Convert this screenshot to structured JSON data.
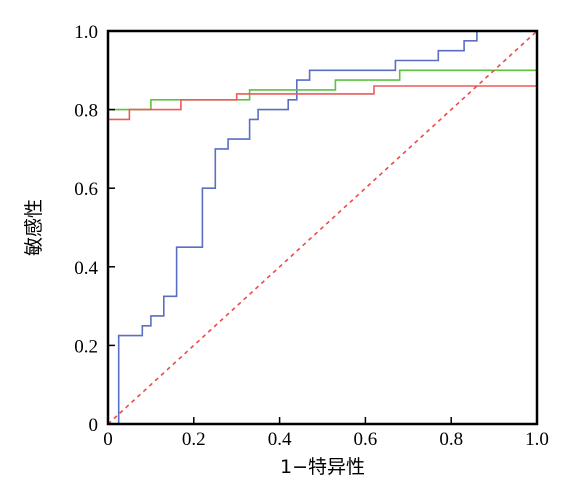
{
  "chart_data": {
    "type": "line",
    "title": "",
    "xlabel": "1−特异性",
    "ylabel": "敏感性",
    "xlim": [
      0,
      1
    ],
    "ylim": [
      0,
      1
    ],
    "grid": false,
    "legend": "none",
    "x_ticks": [
      "0",
      "0.2",
      "0.4",
      "0.6",
      "0.8",
      "1.0"
    ],
    "y_ticks": [
      "0",
      "0.2",
      "0.4",
      "0.6",
      "0.8",
      "1.0"
    ],
    "x_tick_values": [
      0,
      0.2,
      0.4,
      0.6,
      0.8,
      1.0
    ],
    "y_tick_values": [
      0,
      0.2,
      0.4,
      0.6,
      0.8,
      1.0
    ],
    "series": [
      {
        "color": "#5a6fc4",
        "style": "step",
        "points": [
          [
            0.025,
            0
          ],
          [
            0.025,
            0.225
          ],
          [
            0.08,
            0.225
          ],
          [
            0.08,
            0.25
          ],
          [
            0.1,
            0.25
          ],
          [
            0.1,
            0.275
          ],
          [
            0.13,
            0.275
          ],
          [
            0.13,
            0.325
          ],
          [
            0.16,
            0.325
          ],
          [
            0.16,
            0.45
          ],
          [
            0.22,
            0.45
          ],
          [
            0.22,
            0.6
          ],
          [
            0.25,
            0.6
          ],
          [
            0.25,
            0.7
          ],
          [
            0.28,
            0.7
          ],
          [
            0.28,
            0.725
          ],
          [
            0.33,
            0.725
          ],
          [
            0.33,
            0.775
          ],
          [
            0.35,
            0.775
          ],
          [
            0.35,
            0.8
          ],
          [
            0.42,
            0.8
          ],
          [
            0.42,
            0.825
          ],
          [
            0.44,
            0.825
          ],
          [
            0.44,
            0.875
          ],
          [
            0.47,
            0.875
          ],
          [
            0.47,
            0.9
          ],
          [
            0.67,
            0.9
          ],
          [
            0.67,
            0.925
          ],
          [
            0.77,
            0.925
          ],
          [
            0.77,
            0.95
          ],
          [
            0.83,
            0.95
          ],
          [
            0.83,
            0.975
          ],
          [
            0.86,
            0.975
          ],
          [
            0.86,
            1.0
          ],
          [
            1.0,
            1.0
          ]
        ]
      },
      {
        "color": "#5cc241",
        "style": "step",
        "points": [
          [
            0,
            0.8
          ],
          [
            0.1,
            0.8
          ],
          [
            0.1,
            0.825
          ],
          [
            0.33,
            0.825
          ],
          [
            0.33,
            0.85
          ],
          [
            0.53,
            0.85
          ],
          [
            0.53,
            0.875
          ],
          [
            0.68,
            0.875
          ],
          [
            0.68,
            0.9
          ],
          [
            1.0,
            0.9
          ]
        ]
      },
      {
        "color": "#ec5b5b",
        "style": "step",
        "points": [
          [
            0,
            0.775
          ],
          [
            0.05,
            0.775
          ],
          [
            0.05,
            0.8
          ],
          [
            0.17,
            0.8
          ],
          [
            0.17,
            0.825
          ],
          [
            0.3,
            0.825
          ],
          [
            0.3,
            0.84
          ],
          [
            0.62,
            0.84
          ],
          [
            0.62,
            0.86
          ],
          [
            1.0,
            0.86
          ]
        ]
      },
      {
        "color": "#ec4a4a",
        "style": "dashed",
        "points": [
          [
            0,
            0
          ],
          [
            1,
            1
          ]
        ]
      }
    ]
  }
}
